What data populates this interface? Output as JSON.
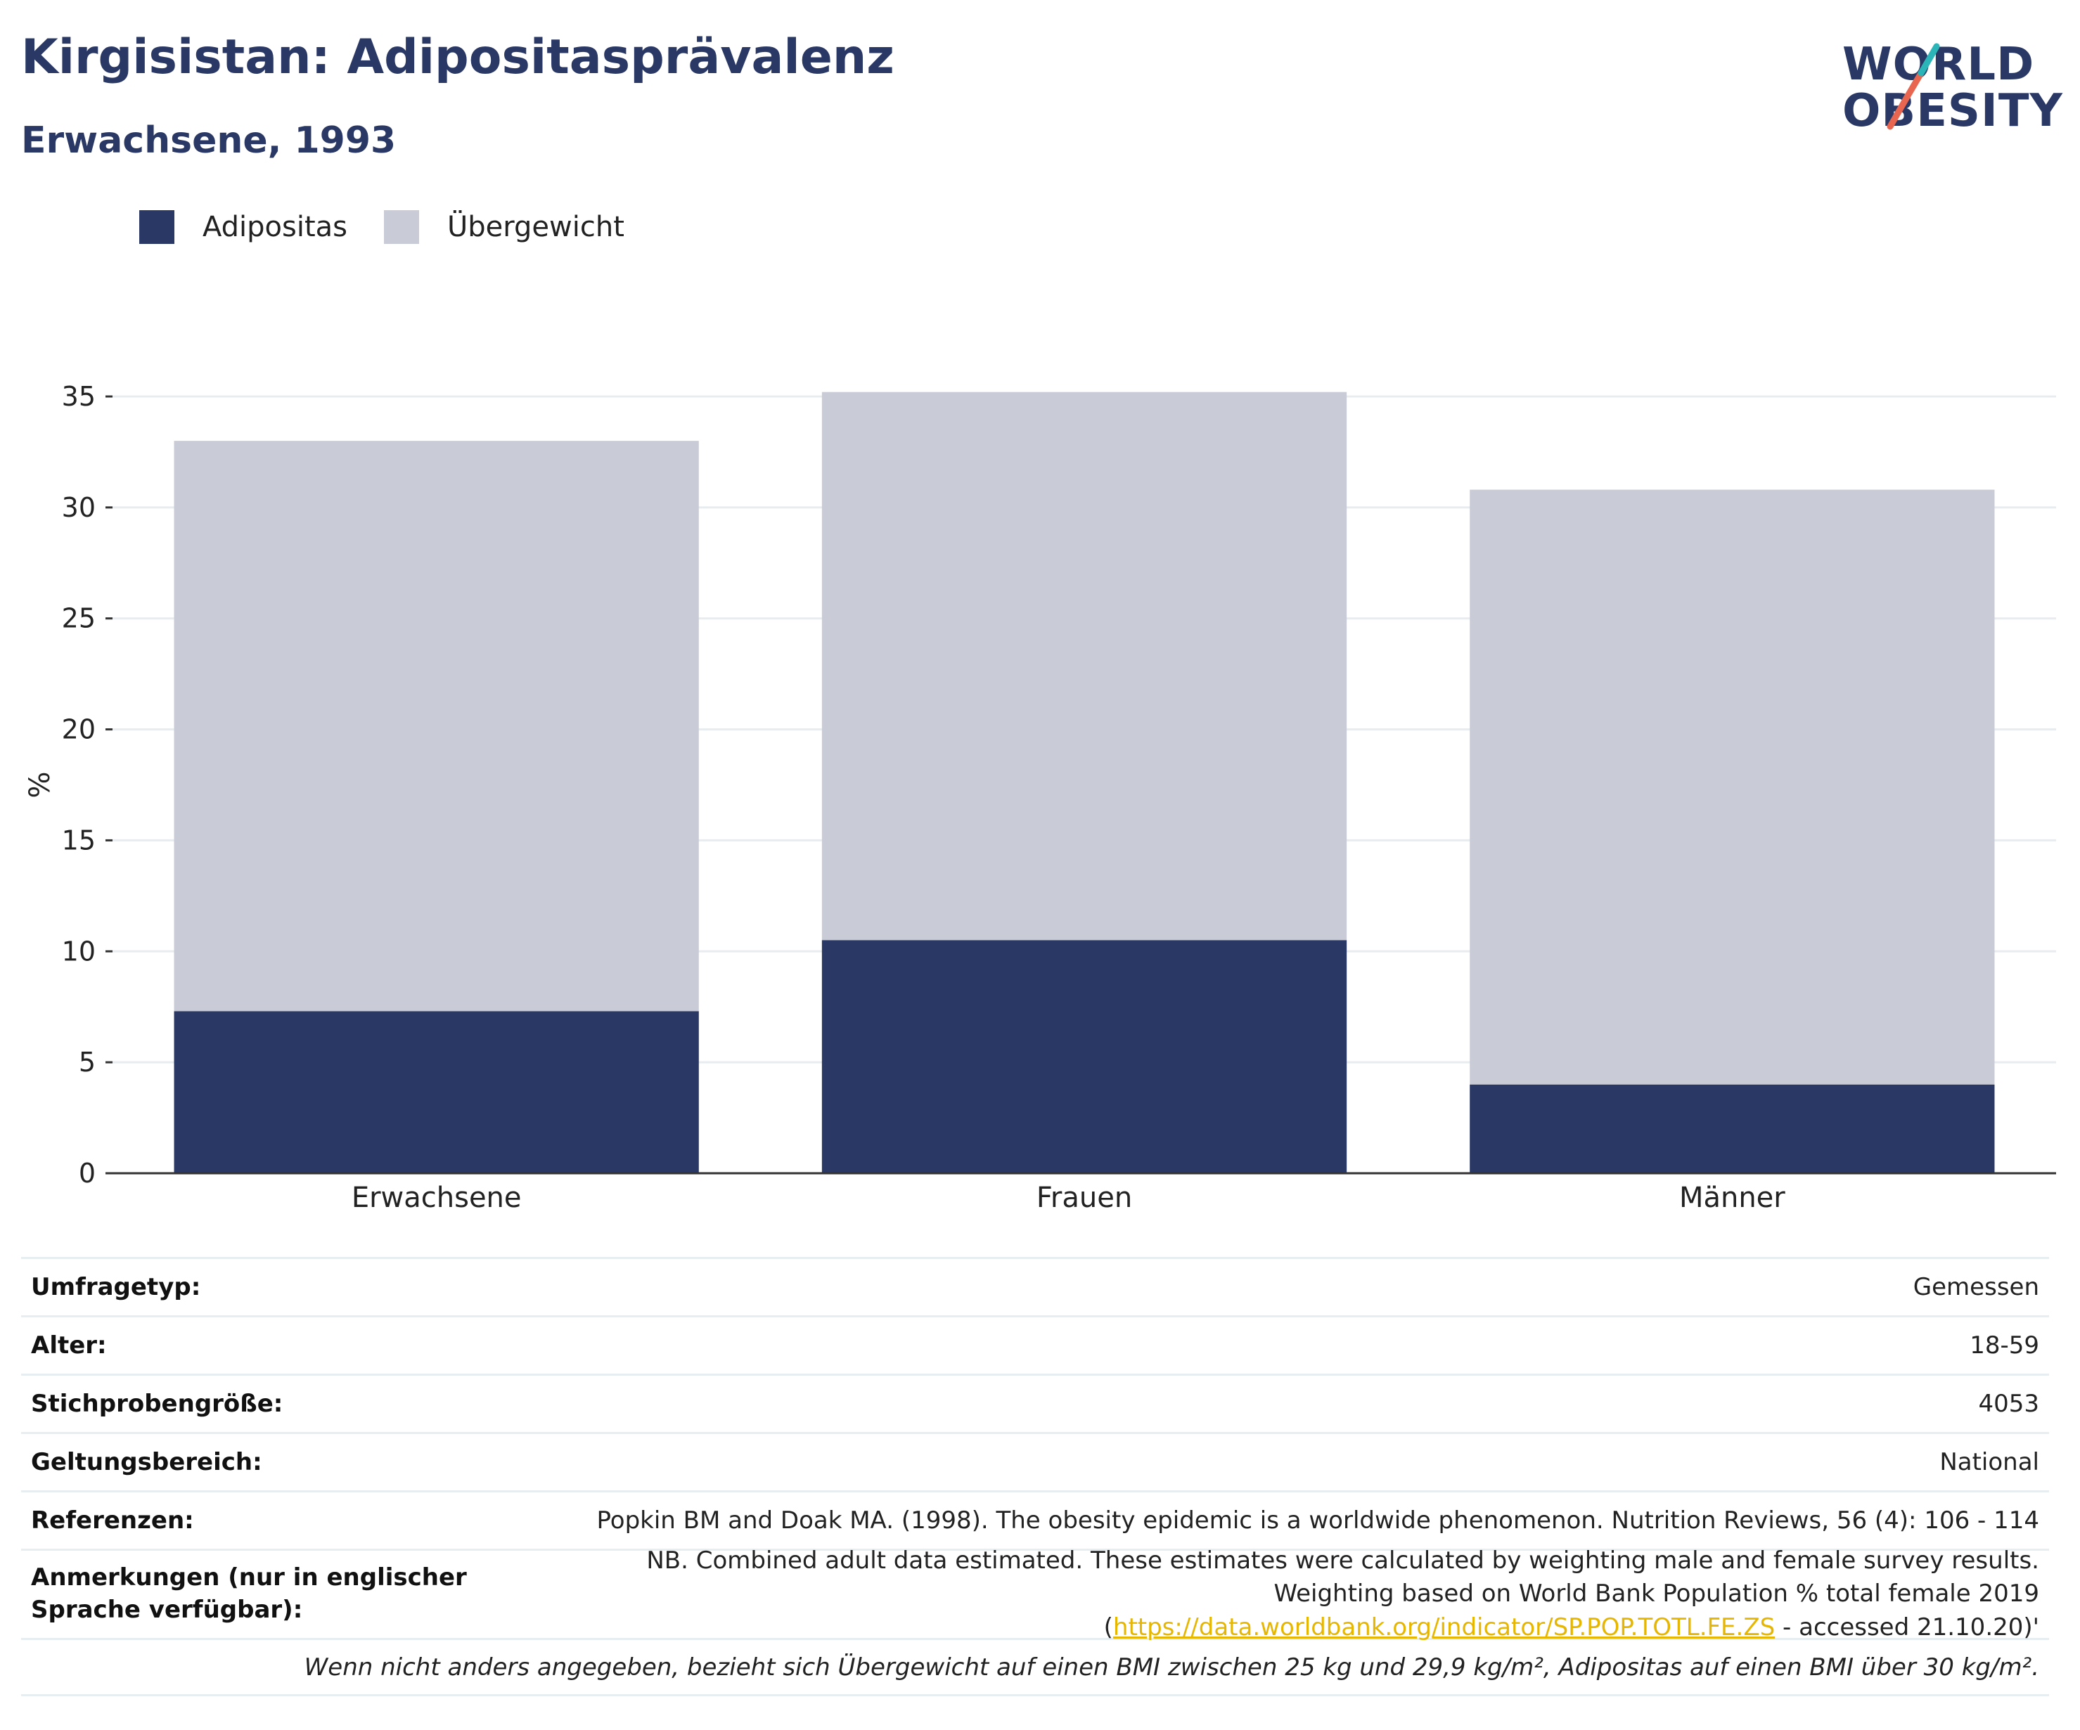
{
  "header": {
    "title": "Kirgisistan: Adipositasprävalenz",
    "subtitle": "Erwachsene, 1993"
  },
  "logo": {
    "line1": "WORLD",
    "line2": "OBESITY",
    "slash_colors": [
      "#2bb5b8",
      "#e8664f"
    ]
  },
  "colors": {
    "adipositas": "#2a3865",
    "uebergewicht": "#c9cbd6",
    "title": "#2a3865",
    "link": "#e6b600",
    "gridline": "#e8ecef",
    "axis": "#333333"
  },
  "legend": {
    "items": [
      {
        "label": "Adipositas",
        "color": "#2a3865"
      },
      {
        "label": "Übergewicht",
        "color": "#c9cbd6"
      }
    ]
  },
  "chart_data": {
    "type": "bar",
    "stacked": true,
    "categories": [
      "Erwachsene",
      "Frauen",
      "Männer"
    ],
    "series": [
      {
        "name": "Adipositas",
        "values": [
          7.3,
          10.5,
          4.0
        ]
      },
      {
        "name": "Übergewicht",
        "values": [
          25.7,
          24.7,
          26.8
        ]
      }
    ],
    "totals": [
      33.0,
      35.2,
      30.8
    ],
    "title": "",
    "xlabel": "",
    "ylabel": "%",
    "ylim": [
      0,
      35
    ],
    "yticks": [
      0,
      5,
      10,
      15,
      20,
      25,
      30,
      35
    ],
    "grid": true,
    "legend_position": "top-left"
  },
  "meta": {
    "survey_type": {
      "key": "Umfragetyp:",
      "value": "Gemessen"
    },
    "age": {
      "key": "Alter:",
      "value": "18-59"
    },
    "sample_size": {
      "key": "Stichprobengröße:",
      "value": "4053"
    },
    "scope": {
      "key": "Geltungsbereich:",
      "value": "National"
    },
    "references": {
      "key": "Referenzen:",
      "value": "Popkin BM and Doak MA. (1998). The obesity epidemic is a worldwide phenomenon. Nutrition Reviews, 56 (4): 106 - 114"
    },
    "notes": {
      "key": "Anmerkungen (nur in englischer Sprache verfügbar):",
      "text_before": "NB. Combined adult data estimated. These estimates were calculated by weighting male and female survey results. Weighting based on World Bank Population % total female 2019 (",
      "link": "https://data.worldbank.org/indicator/SP.POP.TOTL.FE.ZS",
      "text_after": " - accessed 21.10.20)'"
    },
    "footnote": "Wenn nicht anders angegeben, bezieht sich Übergewicht auf einen BMI zwischen 25 kg und 29,9 kg/m², Adipositas auf einen BMI über 30 kg/m²."
  }
}
